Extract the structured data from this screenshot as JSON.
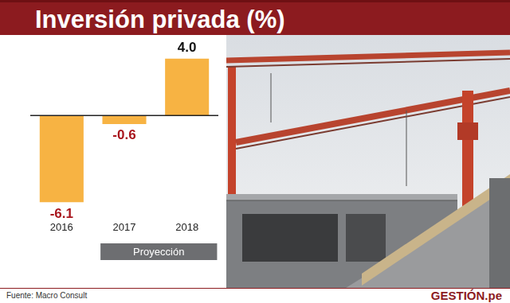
{
  "chart_data": {
    "type": "bar",
    "title": "Inversión privada (%)",
    "categories": [
      "2016",
      "2017",
      "2018"
    ],
    "values": [
      -6.1,
      -0.6,
      4.0
    ],
    "value_labels": [
      "-6.1",
      "-0.6",
      "4.0"
    ],
    "color": "#f7b343",
    "ylim": [
      -7,
      5
    ],
    "grid": false,
    "tick_labels": "x",
    "data_labels": true,
    "annotations": [
      {
        "text": "Proyección",
        "categories": [
          "2017",
          "2018"
        ]
      }
    ],
    "source": "Fuente:  Macro Consult",
    "brand": "GESTIÓN.pe"
  }
}
